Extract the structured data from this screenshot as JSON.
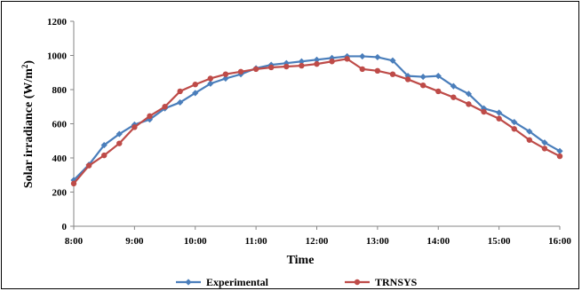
{
  "chart_data": {
    "type": "line",
    "title": "",
    "xlabel": "Time",
    "ylabel_main": "Solar irradiance (W/m",
    "ylabel_sup": "2",
    "ylabel_close": ")",
    "ylim": [
      0,
      1200
    ],
    "yticks": [
      0,
      200,
      400,
      600,
      800,
      1000,
      1200
    ],
    "xlim": [
      8,
      16
    ],
    "xticks": [
      {
        "v": 8,
        "label": "8:00"
      },
      {
        "v": 9,
        "label": "9:00"
      },
      {
        "v": 10,
        "label": "10:00"
      },
      {
        "v": 11,
        "label": "11:00"
      },
      {
        "v": 12,
        "label": "12:00"
      },
      {
        "v": 13,
        "label": "13:00"
      },
      {
        "v": 14,
        "label": "14:00"
      },
      {
        "v": 15,
        "label": "15:00"
      },
      {
        "v": 16,
        "label": "16:00"
      }
    ],
    "grid": false,
    "legend_position": "bottom",
    "series": [
      {
        "name": "Experimental",
        "color": "#4a7ebb",
        "marker": "diamond",
        "x": [
          8.0,
          8.25,
          8.5,
          8.75,
          9.0,
          9.25,
          9.5,
          9.75,
          10.0,
          10.25,
          10.5,
          10.75,
          11.0,
          11.25,
          11.5,
          11.75,
          12.0,
          12.25,
          12.5,
          12.75,
          13.0,
          13.25,
          13.5,
          13.75,
          14.0,
          14.25,
          14.5,
          14.75,
          15.0,
          15.25,
          15.5,
          15.75,
          16.0
        ],
        "y": [
          270,
          360,
          475,
          540,
          595,
          625,
          690,
          725,
          780,
          835,
          865,
          890,
          925,
          945,
          955,
          965,
          975,
          985,
          995,
          995,
          990,
          970,
          880,
          875,
          880,
          820,
          775,
          690,
          665,
          610,
          555,
          490,
          440
        ]
      },
      {
        "name": "TRNSYS",
        "color": "#be4b48",
        "marker": "circle",
        "x": [
          8.0,
          8.25,
          8.5,
          8.75,
          9.0,
          9.25,
          9.5,
          9.75,
          10.0,
          10.25,
          10.5,
          10.75,
          11.0,
          11.25,
          11.5,
          11.75,
          12.0,
          12.25,
          12.5,
          12.75,
          13.0,
          13.25,
          13.5,
          13.75,
          14.0,
          14.25,
          14.5,
          14.75,
          15.0,
          15.25,
          15.5,
          15.75,
          16.0
        ],
        "y": [
          250,
          355,
          415,
          485,
          580,
          645,
          700,
          790,
          830,
          865,
          890,
          905,
          920,
          930,
          935,
          940,
          950,
          965,
          980,
          920,
          910,
          890,
          860,
          825,
          790,
          755,
          715,
          670,
          630,
          570,
          505,
          455,
          410
        ]
      }
    ]
  }
}
